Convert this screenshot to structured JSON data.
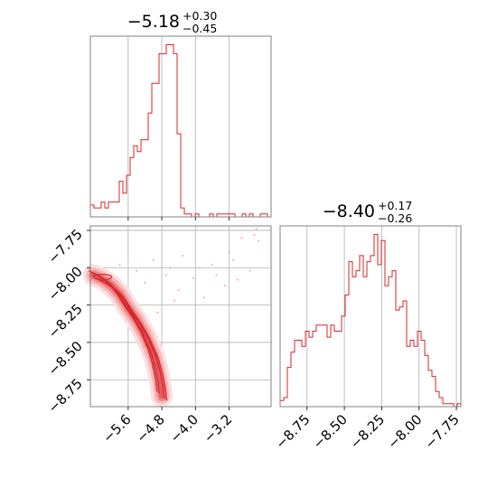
{
  "chart_data": {
    "type": "corner",
    "line_color": "#d62728",
    "grid": true,
    "parameters": [
      {
        "title_main": "−5.18",
        "title_upper": "+0.30",
        "title_lower": "−0.45",
        "range": [
          -6.5,
          -2.2
        ],
        "ticks": [
          -5.6,
          -4.8,
          -4.0,
          -3.2
        ],
        "tick_labels": [
          "−5.6",
          "−4.8",
          "−4.0",
          "−3.2"
        ]
      },
      {
        "title_main": "−8.40",
        "title_upper": "+0.17",
        "title_lower": "−0.26",
        "range": [
          -8.93,
          -7.72
        ],
        "ticks": [
          -8.75,
          -8.5,
          -8.25,
          -8.0,
          -7.75
        ],
        "tick_labels": [
          "−8.75",
          "−8.50",
          "−8.25",
          "−8.00",
          "−7.75"
        ]
      }
    ],
    "hist_param1": {
      "start": -6.5,
      "bin_width": 0.086,
      "counts": [
        4,
        3,
        3,
        5,
        3,
        5,
        5,
        5,
        12,
        8,
        14,
        20,
        24,
        22,
        26,
        26,
        35,
        45,
        45,
        55,
        55,
        58,
        58,
        55,
        28,
        3,
        1,
        1,
        0,
        1,
        0,
        0,
        0,
        1,
        0,
        1,
        1,
        1,
        1,
        1,
        0,
        0,
        1,
        0,
        1,
        0,
        0,
        1,
        1,
        0
      ]
    },
    "hist_param2": {
      "start": -8.93,
      "bin_width": 0.0242,
      "counts": [
        2,
        3,
        13,
        18,
        22,
        22,
        20,
        25,
        23,
        25,
        27,
        27,
        27,
        23,
        27,
        25,
        25,
        30,
        37,
        48,
        43,
        45,
        50,
        43,
        48,
        50,
        57,
        47,
        55,
        40,
        43,
        45,
        32,
        33,
        35,
        20,
        22,
        20,
        25,
        22,
        17,
        12,
        10,
        5,
        3,
        1,
        1,
        1,
        0,
        1
      ]
    },
    "density_2d": {
      "ridge": [
        [
          -6.42,
          -8.05
        ],
        [
          -6.2,
          -8.08
        ],
        [
          -6.0,
          -8.12
        ],
        [
          -5.8,
          -8.18
        ],
        [
          -5.6,
          -8.27
        ],
        [
          -5.4,
          -8.35
        ],
        [
          -5.2,
          -8.45
        ],
        [
          -5.0,
          -8.58
        ],
        [
          -4.9,
          -8.68
        ],
        [
          -4.83,
          -8.78
        ],
        [
          -4.8,
          -8.86
        ]
      ],
      "scatter": [
        [
          -5.0,
          -7.95
        ],
        [
          -4.6,
          -8.0
        ],
        [
          -4.3,
          -7.92
        ],
        [
          -3.9,
          -8.0
        ],
        [
          -3.5,
          -8.05
        ],
        [
          -3.2,
          -7.9
        ],
        [
          -2.9,
          -7.8
        ],
        [
          -2.6,
          -7.78
        ],
        [
          -2.5,
          -7.82
        ],
        [
          -2.7,
          -8.02
        ],
        [
          -3.0,
          -8.08
        ],
        [
          -4.4,
          -8.15
        ],
        [
          -5.4,
          -8.02
        ],
        [
          -5.8,
          -7.98
        ],
        [
          -6.1,
          -8.02
        ],
        [
          -4.9,
          -8.3
        ],
        [
          -4.5,
          -8.22
        ],
        [
          -3.6,
          -7.98
        ],
        [
          -3.3,
          -8.12
        ],
        [
          -2.55,
          -7.74
        ],
        [
          -4.05,
          -8.07
        ],
        [
          -5.2,
          -8.1
        ],
        [
          -3.8,
          -8.2
        ],
        [
          -4.7,
          -8.05
        ],
        [
          -3.1,
          -7.95
        ]
      ]
    }
  }
}
